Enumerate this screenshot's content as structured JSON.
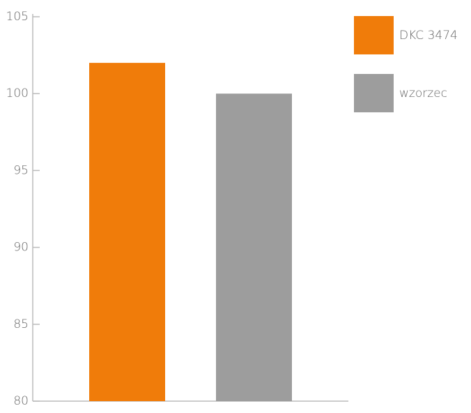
{
  "chart_data": {
    "type": "bar",
    "categories": [
      null
    ],
    "series": [
      {
        "name": "DKC 3474",
        "color": "#f07c0a",
        "values": [
          102
        ]
      },
      {
        "name": "wzorzec",
        "color": "#9d9d9d",
        "values": [
          100
        ]
      }
    ],
    "ylim": [
      80,
      105
    ],
    "yticks": [
      80,
      85,
      90,
      95,
      100,
      105
    ],
    "legend": "top-right"
  }
}
